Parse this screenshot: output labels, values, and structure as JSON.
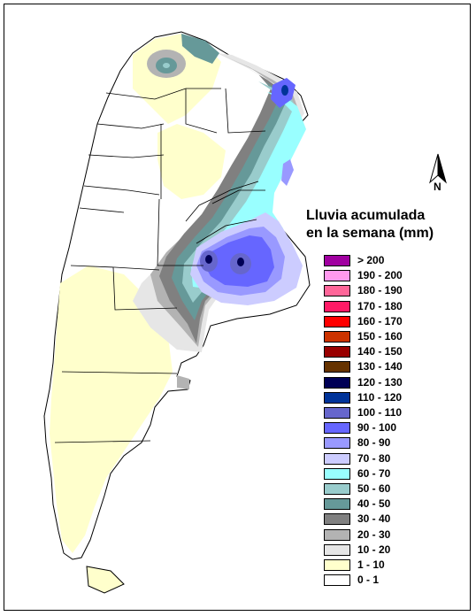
{
  "title": [
    "Lluvia acumulada",
    "en la semana (mm)"
  ],
  "north_label": "N",
  "legend": [
    {
      "label": "> 200",
      "color": "#a000a0"
    },
    {
      "label": "190 - 200",
      "color": "#ff99ee"
    },
    {
      "label": "180 - 190",
      "color": "#ff6699"
    },
    {
      "label": "170 - 180",
      "color": "#ff1a66"
    },
    {
      "label": "160 - 170",
      "color": "#ff0000"
    },
    {
      "label": "150 - 160",
      "color": "#cc3300"
    },
    {
      "label": "140 - 150",
      "color": "#990000"
    },
    {
      "label": "130 - 140",
      "color": "#663300"
    },
    {
      "label": "120 - 130",
      "color": "#000055"
    },
    {
      "label": "110 - 120",
      "color": "#003399"
    },
    {
      "label": "100 - 110",
      "color": "#6666cc"
    },
    {
      "label": "90 - 100",
      "color": "#6666ff"
    },
    {
      "label": "80 - 90",
      "color": "#9999ff"
    },
    {
      "label": "70 - 80",
      "color": "#ccccff"
    },
    {
      "label": "60 - 70",
      "color": "#99ffff"
    },
    {
      "label": "50 - 60",
      "color": "#99cccc"
    },
    {
      "label": "40 - 50",
      "color": "#669999"
    },
    {
      "label": "30 - 40",
      "color": "#808080"
    },
    {
      "label": "20 - 30",
      "color": "#b3b3b3"
    },
    {
      "label": "10 - 20",
      "color": "#e6e6e6"
    },
    {
      "label": "1 - 10",
      "color": "#ffffcc"
    },
    {
      "label": "0 - 1",
      "color": "#ffffff"
    }
  ]
}
